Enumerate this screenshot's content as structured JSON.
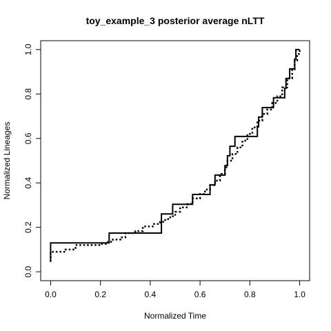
{
  "chart_data": {
    "type": "line",
    "title": "toy_example_3  posterior average nLTT",
    "xlabel": "Normalized Time",
    "ylabel": "Normalized Lineages",
    "xlim": [
      -0.04,
      1.04
    ],
    "ylim": [
      -0.04,
      1.04
    ],
    "x_ticks": [
      "0.0",
      "0.2",
      "0.4",
      "0.6",
      "0.8",
      "1.0"
    ],
    "y_ticks": [
      "0.0",
      "0.2",
      "0.4",
      "0.6",
      "0.8",
      "1.0"
    ],
    "grid": false,
    "legend": "none",
    "series": [
      {
        "style": "solid",
        "step": true,
        "points": [
          [
            0.0,
            0.045
          ],
          [
            0.0,
            0.13
          ],
          [
            0.235,
            0.13
          ],
          [
            0.235,
            0.174
          ],
          [
            0.445,
            0.174
          ],
          [
            0.445,
            0.26
          ],
          [
            0.49,
            0.26
          ],
          [
            0.49,
            0.304
          ],
          [
            0.57,
            0.304
          ],
          [
            0.57,
            0.348
          ],
          [
            0.64,
            0.348
          ],
          [
            0.64,
            0.391
          ],
          [
            0.66,
            0.391
          ],
          [
            0.66,
            0.435
          ],
          [
            0.7,
            0.435
          ],
          [
            0.7,
            0.478
          ],
          [
            0.71,
            0.478
          ],
          [
            0.71,
            0.522
          ],
          [
            0.72,
            0.522
          ],
          [
            0.72,
            0.565
          ],
          [
            0.74,
            0.565
          ],
          [
            0.74,
            0.609
          ],
          [
            0.83,
            0.609
          ],
          [
            0.83,
            0.652
          ],
          [
            0.835,
            0.652
          ],
          [
            0.835,
            0.696
          ],
          [
            0.85,
            0.696
          ],
          [
            0.85,
            0.739
          ],
          [
            0.895,
            0.739
          ],
          [
            0.895,
            0.783
          ],
          [
            0.94,
            0.783
          ],
          [
            0.94,
            0.826
          ],
          [
            0.945,
            0.826
          ],
          [
            0.945,
            0.87
          ],
          [
            0.96,
            0.87
          ],
          [
            0.96,
            0.913
          ],
          [
            0.98,
            0.913
          ],
          [
            0.98,
            0.957
          ],
          [
            0.985,
            0.957
          ],
          [
            0.985,
            1.0
          ],
          [
            1.0,
            1.0
          ]
        ]
      },
      {
        "style": "dotted",
        "step": true,
        "points": [
          [
            0.0,
            0.045
          ],
          [
            0.0,
            0.09
          ],
          [
            0.06,
            0.09
          ],
          [
            0.06,
            0.1
          ],
          [
            0.1,
            0.1
          ],
          [
            0.1,
            0.12
          ],
          [
            0.2,
            0.12
          ],
          [
            0.2,
            0.125
          ],
          [
            0.23,
            0.125
          ],
          [
            0.23,
            0.135
          ],
          [
            0.25,
            0.135
          ],
          [
            0.25,
            0.145
          ],
          [
            0.28,
            0.145
          ],
          [
            0.28,
            0.155
          ],
          [
            0.3,
            0.155
          ],
          [
            0.3,
            0.174
          ],
          [
            0.34,
            0.174
          ],
          [
            0.34,
            0.183
          ],
          [
            0.37,
            0.183
          ],
          [
            0.37,
            0.204
          ],
          [
            0.41,
            0.204
          ],
          [
            0.41,
            0.215
          ],
          [
            0.44,
            0.215
          ],
          [
            0.44,
            0.225
          ],
          [
            0.46,
            0.225
          ],
          [
            0.46,
            0.237
          ],
          [
            0.48,
            0.237
          ],
          [
            0.48,
            0.25
          ],
          [
            0.5,
            0.25
          ],
          [
            0.5,
            0.27
          ],
          [
            0.52,
            0.27
          ],
          [
            0.52,
            0.29
          ],
          [
            0.55,
            0.29
          ],
          [
            0.55,
            0.305
          ],
          [
            0.57,
            0.305
          ],
          [
            0.57,
            0.33
          ],
          [
            0.6,
            0.33
          ],
          [
            0.6,
            0.35
          ],
          [
            0.62,
            0.35
          ],
          [
            0.62,
            0.37
          ],
          [
            0.64,
            0.37
          ],
          [
            0.64,
            0.39
          ],
          [
            0.66,
            0.39
          ],
          [
            0.66,
            0.41
          ],
          [
            0.68,
            0.41
          ],
          [
            0.68,
            0.44
          ],
          [
            0.7,
            0.44
          ],
          [
            0.7,
            0.47
          ],
          [
            0.71,
            0.47
          ],
          [
            0.71,
            0.5
          ],
          [
            0.73,
            0.5
          ],
          [
            0.73,
            0.53
          ],
          [
            0.75,
            0.53
          ],
          [
            0.75,
            0.56
          ],
          [
            0.77,
            0.56
          ],
          [
            0.77,
            0.59
          ],
          [
            0.79,
            0.59
          ],
          [
            0.79,
            0.62
          ],
          [
            0.81,
            0.62
          ],
          [
            0.81,
            0.65
          ],
          [
            0.83,
            0.65
          ],
          [
            0.83,
            0.68
          ],
          [
            0.85,
            0.68
          ],
          [
            0.85,
            0.71
          ],
          [
            0.87,
            0.71
          ],
          [
            0.87,
            0.73
          ],
          [
            0.89,
            0.73
          ],
          [
            0.89,
            0.76
          ],
          [
            0.91,
            0.76
          ],
          [
            0.91,
            0.79
          ],
          [
            0.93,
            0.79
          ],
          [
            0.93,
            0.83
          ],
          [
            0.95,
            0.83
          ],
          [
            0.95,
            0.87
          ],
          [
            0.97,
            0.87
          ],
          [
            0.97,
            0.91
          ],
          [
            0.98,
            0.91
          ],
          [
            0.98,
            0.95
          ],
          [
            0.99,
            0.95
          ],
          [
            0.99,
            0.98
          ],
          [
            1.0,
            0.98
          ],
          [
            1.0,
            1.0
          ]
        ]
      }
    ]
  }
}
